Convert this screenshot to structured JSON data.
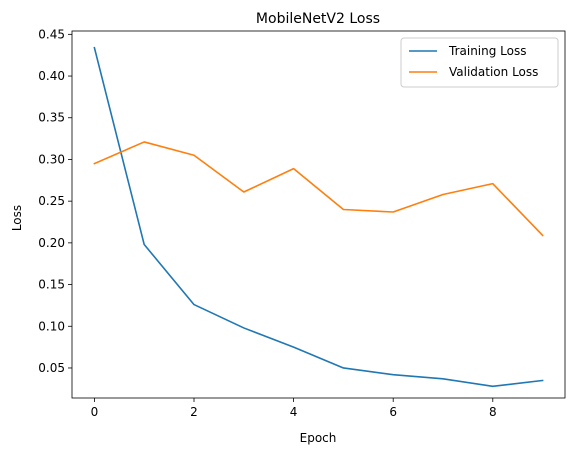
{
  "chart_data": {
    "type": "line",
    "title": "MobileNetV2 Loss",
    "xlabel": "Epoch",
    "ylabel": "Loss",
    "x": [
      0,
      1,
      2,
      3,
      4,
      5,
      6,
      7,
      8,
      9
    ],
    "xlim": [
      -0.45,
      9.45
    ],
    "ylim": [
      0.014,
      0.454
    ],
    "xticks": [
      0,
      2,
      4,
      6,
      8
    ],
    "yticks": [
      0.05,
      0.1,
      0.15,
      0.2,
      0.25,
      0.3,
      0.35,
      0.4,
      0.45
    ],
    "grid": false,
    "legend_position": "top-right",
    "series": [
      {
        "name": "Training Loss",
        "color": "#1f77b4",
        "values": [
          0.434,
          0.198,
          0.126,
          0.098,
          0.075,
          0.05,
          0.042,
          0.037,
          0.028,
          0.035
        ]
      },
      {
        "name": "Validation Loss",
        "color": "#ff7f0e",
        "values": [
          0.295,
          0.321,
          0.305,
          0.261,
          0.289,
          0.24,
          0.237,
          0.258,
          0.271,
          0.209
        ]
      }
    ]
  }
}
